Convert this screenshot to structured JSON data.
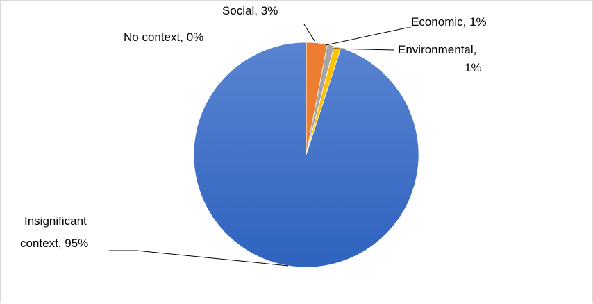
{
  "chart_data": {
    "type": "pie",
    "title": "",
    "categories": [
      "Social",
      "Economic",
      "Environmental",
      "Insignificant context",
      "No context"
    ],
    "values": [
      3,
      1,
      1,
      95,
      0
    ],
    "colors": [
      "#ed7d31",
      "#a5a5a5",
      "#ffc000",
      "#4472c4",
      "#5b9bd5"
    ],
    "start_angle_deg": 0,
    "direction": "clockwise",
    "legend": "none",
    "data_labels": [
      {
        "category": "Social",
        "lines": [
          "Social, 3%"
        ]
      },
      {
        "category": "Economic",
        "lines": [
          "Economic, 1%"
        ]
      },
      {
        "category": "Environmental",
        "lines": [
          "Environmental,",
          "1%"
        ]
      },
      {
        "category": "Insignificant context",
        "lines": [
          "Insignificant",
          "context, 95%"
        ]
      },
      {
        "category": "No context",
        "lines": [
          "No context, 0%"
        ]
      }
    ]
  }
}
